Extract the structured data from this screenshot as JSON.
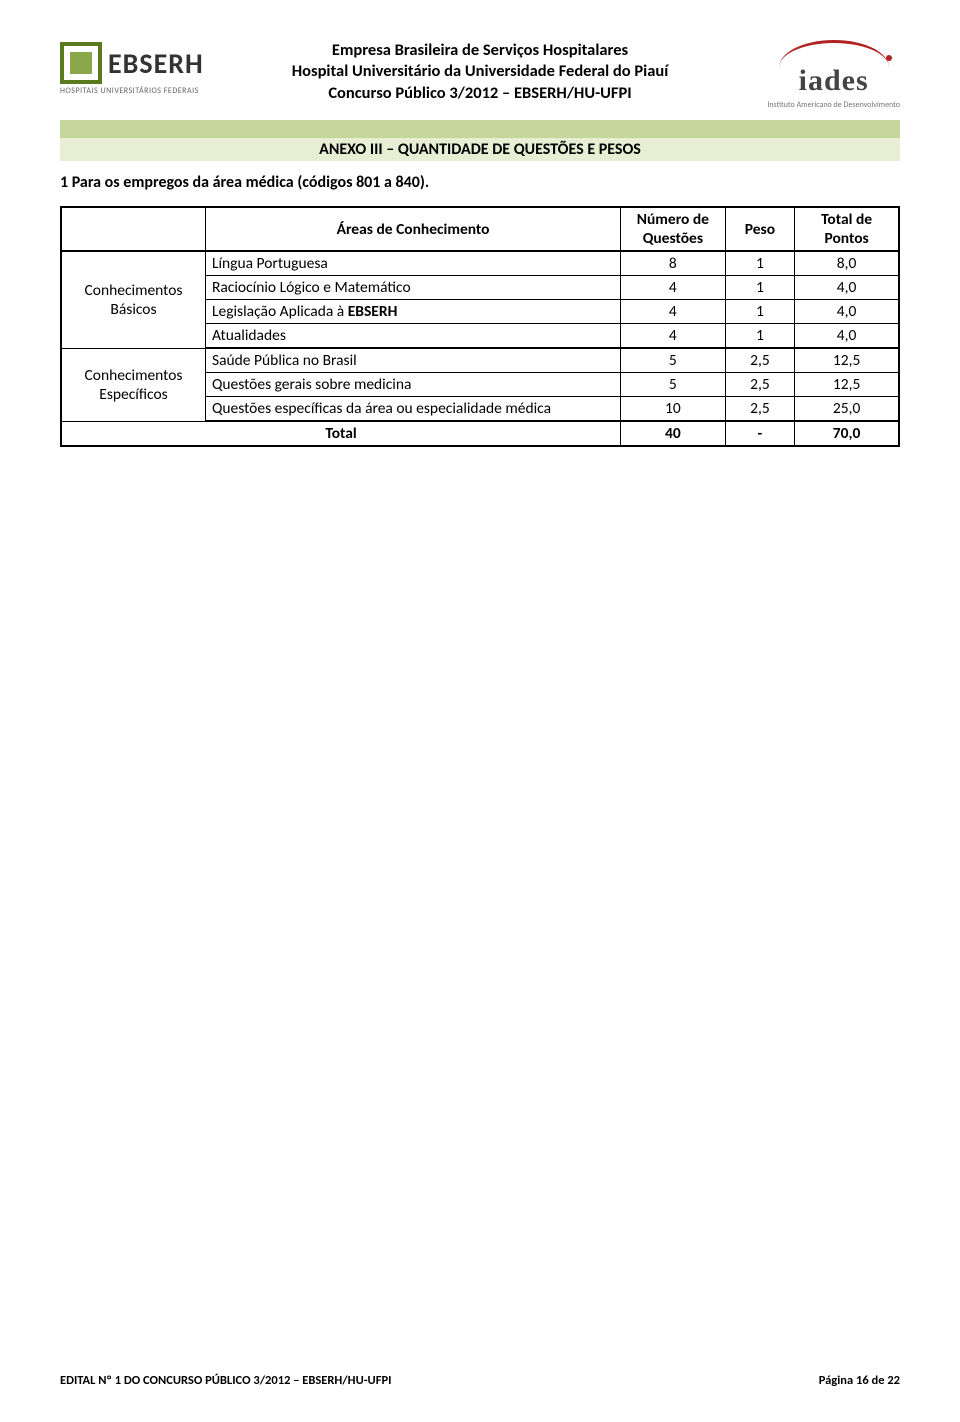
{
  "header": {
    "line1": "Empresa Brasileira de Serviços Hospitalares",
    "line2": "Hospital Universitário da Universidade Federal do Piauí",
    "line3": "Concurso Público 3/2012 – EBSERH/HU-UFPI",
    "ebserh_name": "EBSERH",
    "ebserh_sub": "HOSPITAIS UNIVERSITÁRIOS FEDERAIS",
    "iades_name": "iades",
    "iades_sub": "Instituto Americano de Desenvolvimento"
  },
  "anexo_title": "ANEXO III – QUANTIDADE DE QUESTÕES E PESOS",
  "section_line": "1 Para os empregos da área médica (códigos 801 a 840).",
  "table": {
    "head": {
      "group_blank": "",
      "areas": "Áreas de Conhecimento",
      "num": "Número de Questões",
      "peso": "Peso",
      "pts": "Total de Pontos"
    },
    "group_basicos": "Conhecimentos Básicos",
    "group_especificos": "Conhecimentos Específicos",
    "rows_basicos": [
      {
        "area": "Língua Portuguesa",
        "num": "8",
        "peso": "1",
        "pts": "8,0"
      },
      {
        "area": "Raciocínio Lógico e Matemático",
        "num": "4",
        "peso": "1",
        "pts": "4,0"
      },
      {
        "area_prefix": "Legislação Aplicada à ",
        "area_bold": "EBSERH",
        "num": "4",
        "peso": "1",
        "pts": "4,0"
      },
      {
        "area": "Atualidades",
        "num": "4",
        "peso": "1",
        "pts": "4,0"
      }
    ],
    "rows_especificos": [
      {
        "area": "Saúde Pública no Brasil",
        "num": "5",
        "peso": "2,5",
        "pts": "12,5"
      },
      {
        "area": "Questões gerais sobre medicina",
        "num": "5",
        "peso": "2,5",
        "pts": "12,5"
      },
      {
        "area": "Questões específicas da área ou especialidade médica",
        "num": "10",
        "peso": "2,5",
        "pts": "25,0"
      }
    ],
    "total": {
      "label": "Total",
      "num": "40",
      "peso": "-",
      "pts": "70,0"
    }
  },
  "footer": {
    "left": "EDITAL Nº 1 DO CONCURSO PÚBLICO 3/2012 – EBSERH/HU-UFPI",
    "right": "Página 16 de 22"
  },
  "colors": {
    "green_bar": "#c4d699",
    "anexo_bg": "#e8eed4",
    "ebserh_outer": "#5a7a1f",
    "ebserh_inner": "#8aa84a",
    "iades_arc": "#b22222"
  }
}
